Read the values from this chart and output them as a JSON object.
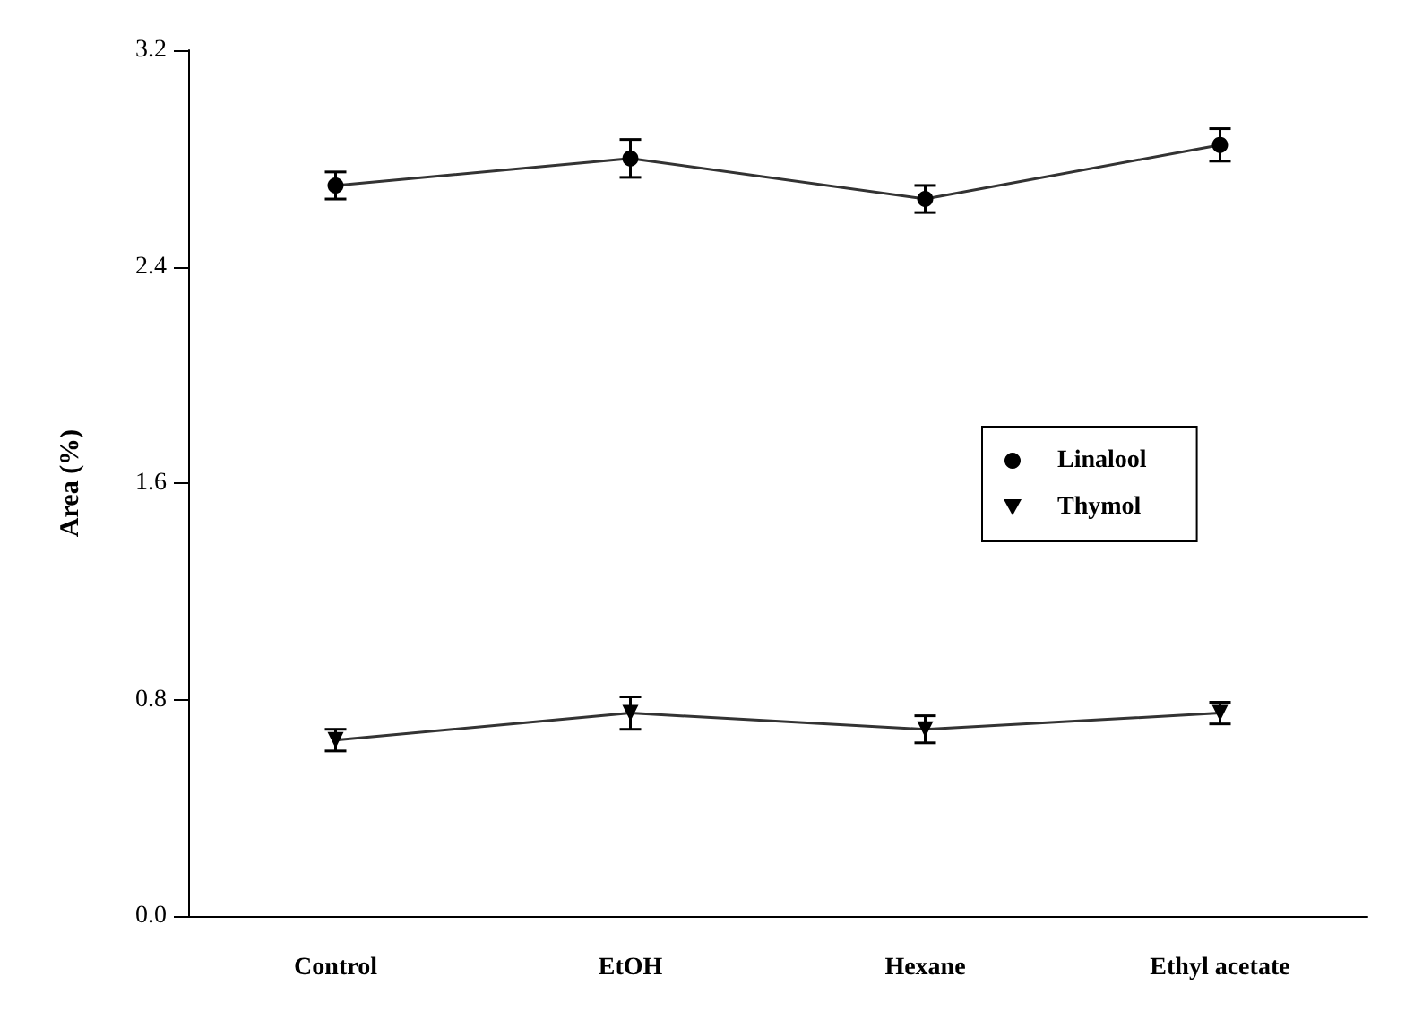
{
  "chart_data": {
    "type": "line",
    "ylabel": "Area (%)",
    "categories": [
      "Control",
      "EtOH",
      "Hexane",
      "Ethyl acetate"
    ],
    "series": [
      {
        "name": "Linalool",
        "color": "#000000",
        "marker": "circle",
        "values": [
          2.7,
          2.8,
          2.65,
          2.85
        ],
        "errors": [
          0.05,
          0.07,
          0.05,
          0.06
        ]
      },
      {
        "name": "Thymol",
        "color": "#000000",
        "marker": "triangle",
        "values": [
          0.65,
          0.75,
          0.69,
          0.75
        ],
        "errors": [
          0.04,
          0.06,
          0.05,
          0.04
        ]
      }
    ],
    "ylim": [
      0,
      3.2
    ],
    "yticks": [
      {
        "value": 0,
        "label": "0.0"
      },
      0.8,
      1.6,
      2.4,
      3.2
    ],
    "grid": false,
    "legend": "right",
    "line_style": "solid"
  }
}
